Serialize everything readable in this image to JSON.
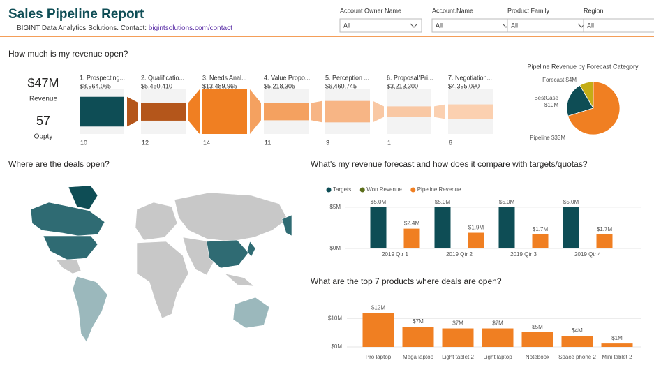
{
  "header": {
    "title": "Sales Pipeline Report",
    "subtitle": "BIGINT Data Analytics Solutions. Contact:",
    "link": "bigintsolutions.com/contact"
  },
  "filters": [
    {
      "label": "Account Owner Name",
      "value": "All"
    },
    {
      "label": "Account.Name",
      "value": "All"
    },
    {
      "label": "Product Family",
      "value": "All"
    },
    {
      "label": "Region",
      "value": "All"
    }
  ],
  "kpis": [
    {
      "value": "$47M",
      "label": "Revenue"
    },
    {
      "value": "57",
      "label": "Oppty"
    }
  ],
  "map": {
    "title": "Where are the deals open?"
  },
  "chart_data": [
    {
      "type": "funnel",
      "title": "How much is my revenue open?",
      "categories": [
        "1. Prospecting...",
        "2. Qualificatio...",
        "3. Needs Anal...",
        "4. Value Propo...",
        "5. Perception ...",
        "6. Proposal/Pri...",
        "7. Negotiation..."
      ],
      "values": [
        8964065,
        5450410,
        13489965,
        5218305,
        6460745,
        3213300,
        4395090
      ],
      "value_labels": [
        "$8,964,065",
        "$5,450,410",
        "$13,489,965",
        "$5,218,305",
        "$6,460,745",
        "$3,213,300",
        "$4,395,090"
      ],
      "counts": [
        10,
        12,
        14,
        11,
        3,
        1,
        6
      ],
      "colors": [
        "#0e4d55",
        "#b4561b",
        "#f07f22",
        "#f4a160",
        "#f7b585",
        "#f9c8a4",
        "#fbd0b0"
      ]
    },
    {
      "type": "pie",
      "title": "Pipeline Revenue by Forecast Category",
      "categories": [
        "Forecast",
        "BestCase",
        "Pipeline"
      ],
      "values": [
        4,
        10,
        33
      ],
      "value_labels": [
        "$4M",
        "$10M",
        "$33M"
      ],
      "colors": [
        "#c4ad16",
        "#0e4d55",
        "#f07f22"
      ]
    },
    {
      "type": "grouped_bar",
      "title": "What's my revenue forecast and how does it compare with targets/quotas?",
      "categories": [
        "2019 Qtr 1",
        "2019 Qtr 2",
        "2019 Qtr 3",
        "2019 Qtr 4"
      ],
      "series": [
        {
          "name": "Targets",
          "color": "#0e4d55",
          "values": [
            5.0,
            5.0,
            5.0,
            5.0
          ],
          "value_labels": [
            "$5.0M",
            "$5.0M",
            "$5.0M",
            "$5.0M"
          ]
        },
        {
          "name": "Won Revenue",
          "color": "#5b6e1a",
          "values": [
            null,
            null,
            null,
            null
          ]
        },
        {
          "name": "Pipeline Revenue",
          "color": "#f07f22",
          "values": [
            2.4,
            1.9,
            1.7,
            1.7
          ],
          "value_labels": [
            "$2.4M",
            "$1.9M",
            "$1.7M",
            "$1.7M"
          ]
        }
      ],
      "ylim": [
        0,
        6
      ],
      "yticks": [
        {
          "value": 0,
          "label": "$0M"
        },
        {
          "value": 5,
          "label": "$5M"
        }
      ],
      "grid": true
    },
    {
      "type": "bar",
      "title": "What are the top 7 products where deals are open?",
      "categories": [
        "Pro laptop",
        "Mega laptop",
        "Light tablet 2",
        "Light laptop",
        "Notebook",
        "Space phone 2",
        "Mini tablet 2"
      ],
      "values": [
        12,
        7.1,
        6.5,
        6.5,
        5.2,
        3.9,
        1.2
      ],
      "value_labels": [
        "$12M",
        "$7M",
        "$7M",
        "$7M",
        "$5M",
        "$4M",
        "$1M"
      ],
      "color": "#f07f22",
      "ylim": [
        0,
        14
      ],
      "yticks": [
        {
          "value": 0,
          "label": "$0M"
        },
        {
          "value": 10,
          "label": "$10M"
        }
      ],
      "grid": true
    }
  ]
}
